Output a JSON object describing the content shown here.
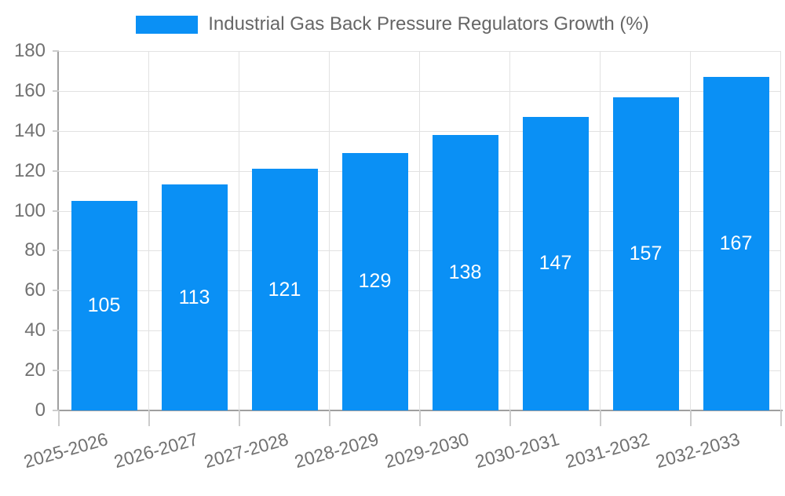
{
  "legend": {
    "label": "Industrial Gas Back Pressure Regulators Growth (%)"
  },
  "colors": {
    "bar": "#0a90f5",
    "grid": "#e2e2e2",
    "axis": "#9f9f9f",
    "tick": "#cccccc",
    "tick_label": "#717171",
    "legend_text": "#666666",
    "value_label": "#ffffff",
    "background": "#ffffff"
  },
  "chart_data": {
    "type": "bar",
    "title": "",
    "categories": [
      "2025-2026",
      "2026-2027",
      "2027-2028",
      "2028-2029",
      "2029-2030",
      "2030-2031",
      "2031-2032",
      "2032-2033"
    ],
    "series": [
      {
        "name": "Industrial Gas Back Pressure Regulators Growth (%)",
        "values": [
          105,
          113,
          121,
          129,
          138,
          147,
          157,
          167
        ]
      }
    ],
    "values": [
      105,
      113,
      121,
      129,
      138,
      147,
      157,
      167
    ],
    "xlabel": "",
    "ylabel": "",
    "ylim": [
      0,
      180
    ],
    "yticks": [
      0,
      20,
      40,
      60,
      80,
      100,
      120,
      140,
      160,
      180
    ],
    "grid": true,
    "legend_position": "top",
    "bar_labels_inside": true,
    "x_label_rotation_deg": -16
  }
}
